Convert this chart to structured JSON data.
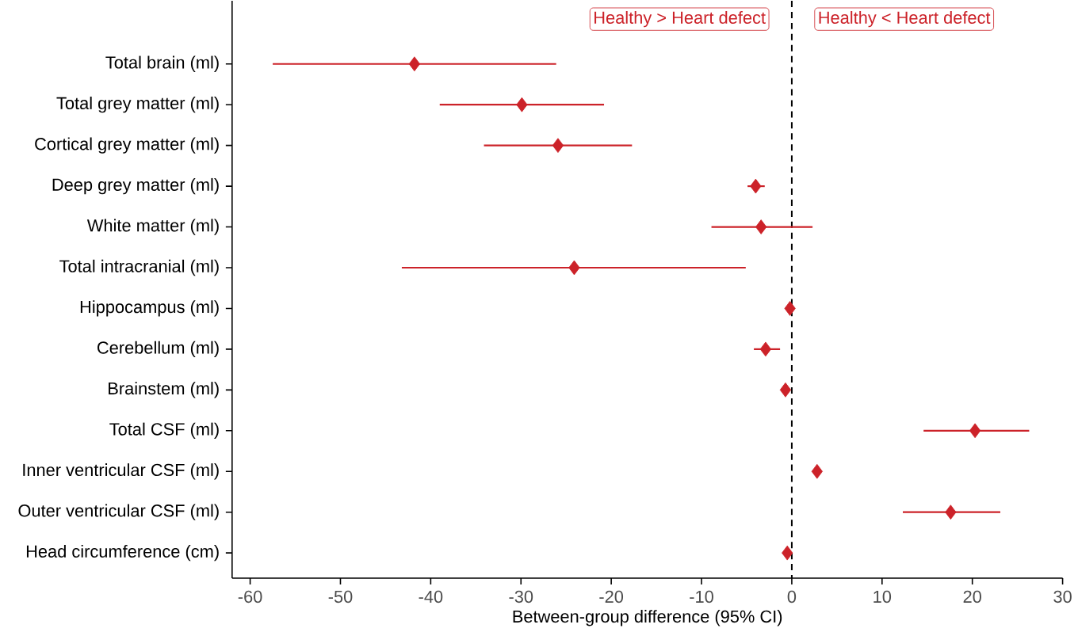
{
  "chart_data": {
    "type": "scatter",
    "orientation": "horizontal",
    "xlabel": "Between-group difference (95% CI)",
    "categories": [
      "Total brain (ml)",
      "Total grey matter (ml)",
      "Cortical grey matter (ml)",
      "Deep grey matter (ml)",
      "White matter (ml)",
      "Total intracranial (ml)",
      "Hippocampus (ml)",
      "Cerebellum (ml)",
      "Brainstem (ml)",
      "Total CSF (ml)",
      "Inner ventricular CSF (ml)",
      "Outer ventricular CSF (ml)",
      "Head circumference (cm)"
    ],
    "values": [
      -41.8,
      -29.9,
      -25.9,
      -4.0,
      -3.4,
      -24.1,
      -0.2,
      -2.9,
      -0.7,
      20.3,
      2.8,
      17.6,
      -0.5
    ],
    "errors": [
      [
        -57.5,
        -26.1
      ],
      [
        -39.0,
        -20.8
      ],
      [
        -34.1,
        -17.7
      ],
      [
        -4.9,
        -3.0
      ],
      [
        -8.9,
        2.3
      ],
      [
        -43.2,
        -5.1
      ],
      null,
      [
        -4.2,
        -1.3
      ],
      null,
      [
        14.6,
        26.3
      ],
      null,
      [
        12.3,
        23.1
      ],
      null
    ],
    "color": "#cc2229",
    "marker": "diamond",
    "xlim": [
      -62,
      30
    ],
    "xticks": [
      -60,
      -50,
      -40,
      -30,
      -20,
      -10,
      0,
      10,
      20,
      30
    ],
    "ref_lines": [
      {
        "axis": "x",
        "value": 0,
        "color": "#000000",
        "line_style": "dashed"
      }
    ],
    "annotations": [
      "Healthy > Heart defect",
      "Healthy < Heart defect"
    ]
  }
}
